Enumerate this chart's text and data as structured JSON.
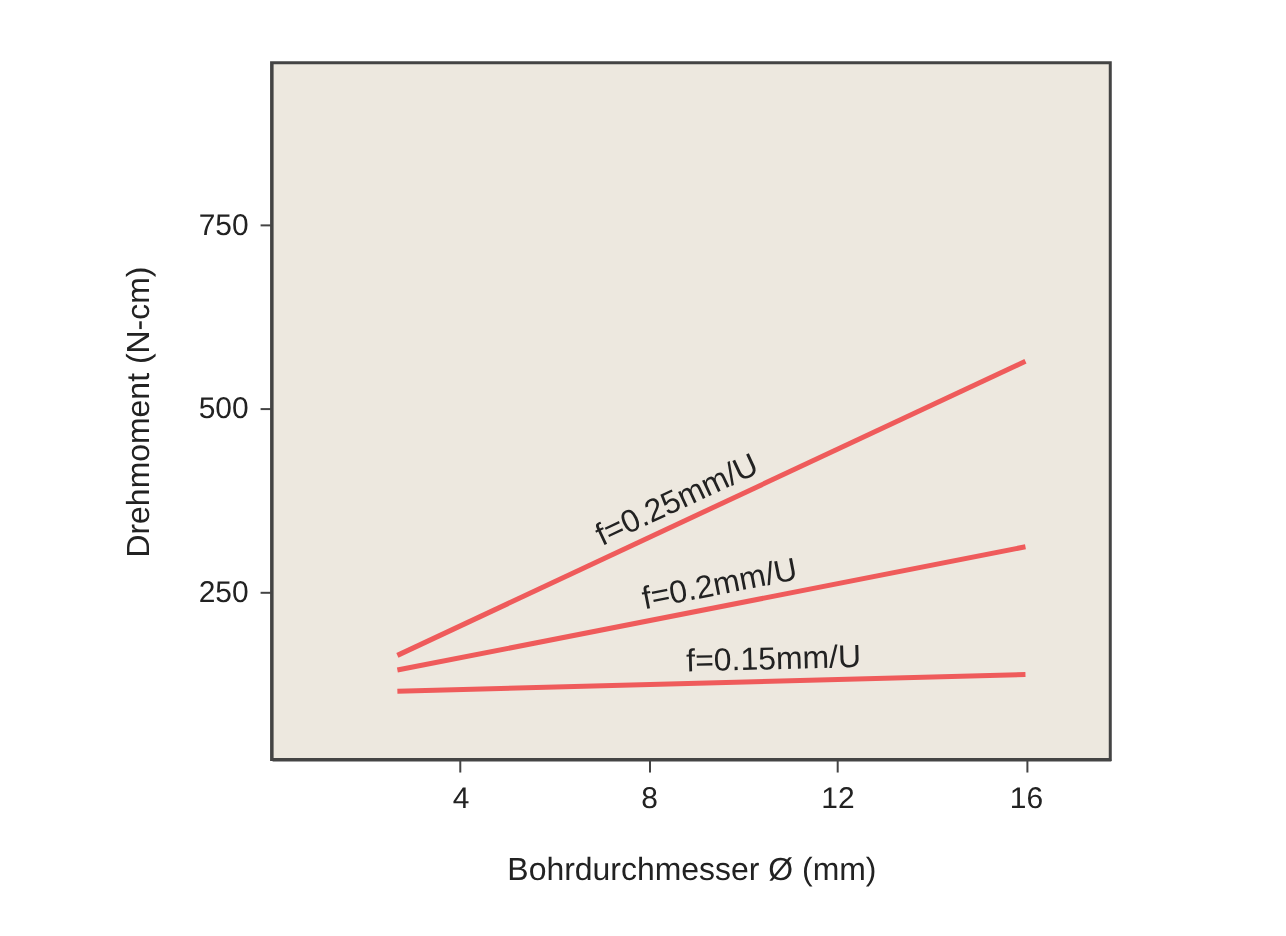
{
  "chart_data": {
    "type": "line",
    "xlabel": "Bohrdurchmesser Ø (mm)",
    "ylabel": "Drehmoment (N-cm)",
    "xlim": [
      0,
      17.8
    ],
    "xticks": [
      4,
      8,
      12,
      16
    ],
    "ylim": [
      20,
      970
    ],
    "yticks": [
      250,
      500,
      750
    ],
    "x": [
      2.67,
      16
    ],
    "series": [
      {
        "name": "f=0.25mm/U",
        "color": "#ef5b5b",
        "values": [
          162,
          563
        ]
      },
      {
        "name": "f=0.2mm/U",
        "color": "#ef5b5b",
        "values": [
          142,
          310
        ]
      },
      {
        "name": "f=0.15mm/U",
        "color": "#ef5b5b",
        "values": [
          113,
          136
        ]
      }
    ],
    "grid": false,
    "marker": "none",
    "line_style": "solid"
  }
}
